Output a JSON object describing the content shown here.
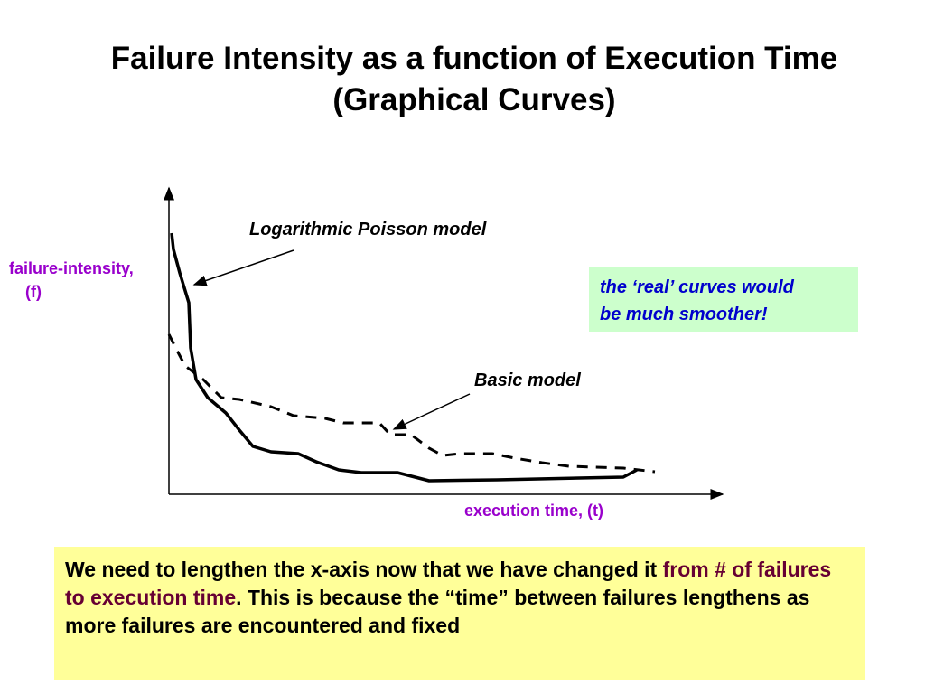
{
  "title": {
    "line1": "Failure Intensity as a function of Execution Time",
    "line2": "(Graphical Curves)"
  },
  "axes": {
    "y_label_1": "failure-intensity,",
    "y_label_2": "(f)",
    "x_label": "execution time, (t)"
  },
  "curves": {
    "log_poisson_label": "Logarithmic Poisson model",
    "basic_label": "Basic model"
  },
  "note": {
    "line1": "the ‘real’ curves would",
    "line2": "be much smoother!"
  },
  "explanation": {
    "part1": "We need to lengthen the x-axis now that we have changed it ",
    "highlight": "from # of failures to execution time",
    "part2": ". This is because the “time” between failures lengthens as more failures are encountered and fixed"
  },
  "colors": {
    "axis_label": "#9900cc",
    "note_bg": "#ccffcc",
    "note_text": "#0000cc",
    "box_bg": "#ffff99",
    "highlight": "#660033"
  }
}
